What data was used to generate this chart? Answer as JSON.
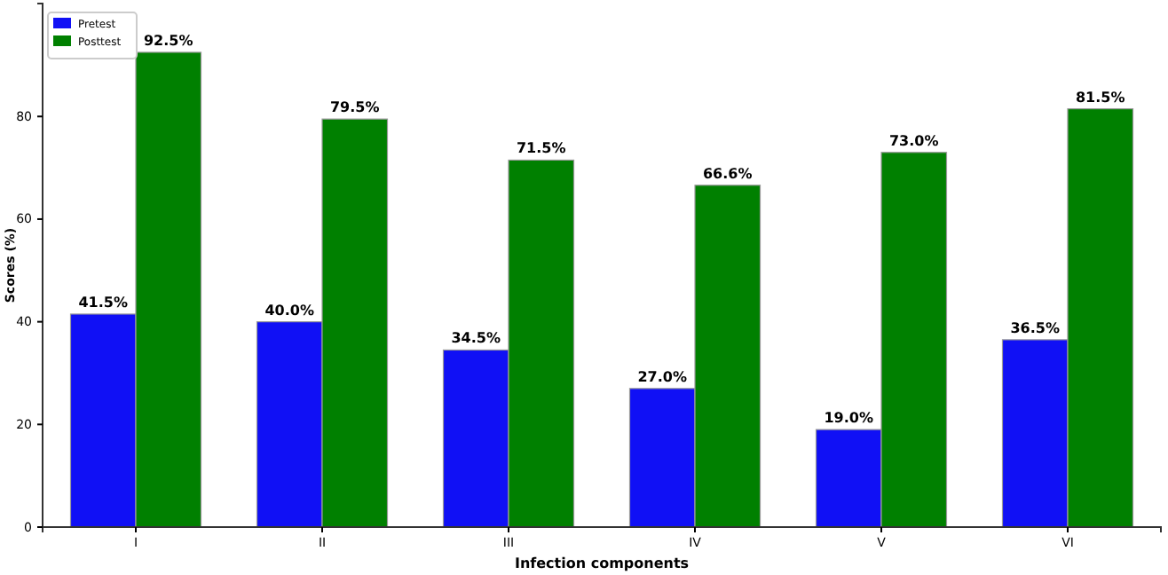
{
  "chart_data": {
    "type": "bar",
    "xlabel": "Infection components",
    "ylabel": "Scores (%)",
    "categories": [
      "I",
      "II",
      "III",
      "IV",
      "V",
      "VI"
    ],
    "series": [
      {
        "name": "Pretest",
        "color": "#1010f5",
        "values": [
          41.5,
          40.0,
          34.5,
          27.0,
          19.0,
          36.5
        ],
        "value_labels": [
          "41.5%",
          "40.0%",
          "34.5%",
          "27.0%",
          "19.0%",
          "36.5%"
        ]
      },
      {
        "name": "Posttest",
        "color": "#008000",
        "values": [
          92.5,
          79.5,
          71.5,
          66.6,
          73.0,
          81.5
        ],
        "value_labels": [
          "92.5%",
          "79.5%",
          "71.5%",
          "66.6%",
          "73.0%",
          "81.5%"
        ]
      }
    ],
    "ylim": [
      0,
      102
    ],
    "yticks": [
      0,
      20,
      40,
      60,
      80
    ],
    "grid": false,
    "legend": "top left"
  }
}
